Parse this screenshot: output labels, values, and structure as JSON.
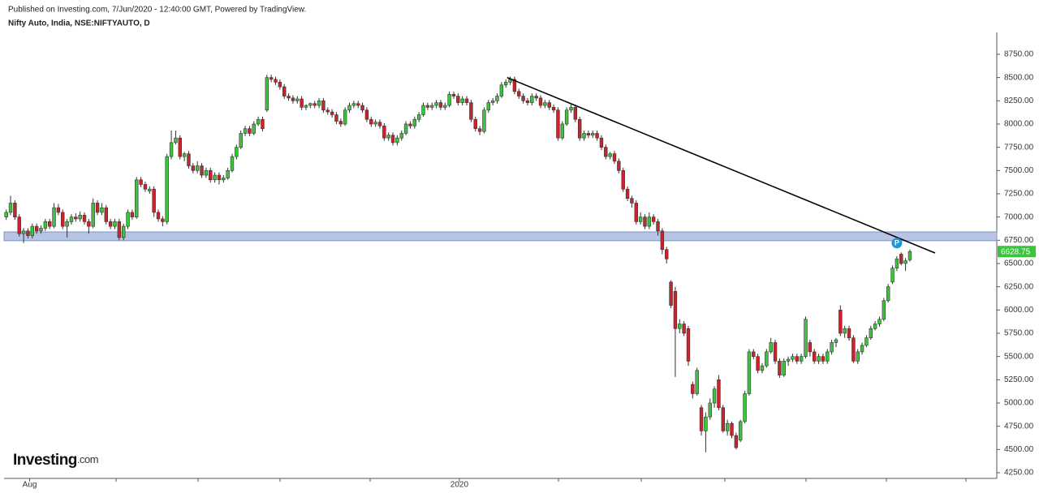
{
  "chart_data": {
    "type": "candlestick",
    "published": "Published on Investing.com, 7/Jun/2020 - 12:40:00 GMT, Powered by TradingView.",
    "title": "Nifty Auto, India, NSE:NIFTYAUTO, D",
    "logo": "Investing",
    "logo_suffix": ".com",
    "marker_label": "P",
    "up_color": "#3cc43c",
    "down_color": "#c9232b",
    "trendline_color": "#000000",
    "zone_color": "#9fb0d9",
    "xlim": [
      -0.5,
      228
    ],
    "xticks": [
      {
        "value": 5.4,
        "label": "Aug"
      },
      {
        "value": 104.3,
        "label": "2020"
      }
    ],
    "ylim": [
      4189,
      8985
    ],
    "yticks": [
      {
        "value": 4250,
        "label": "4250.00"
      },
      {
        "value": 4500,
        "label": "4500.00"
      },
      {
        "value": 4750,
        "label": "4750.00"
      },
      {
        "value": 5000,
        "label": "5000.00"
      },
      {
        "value": 5250,
        "label": "5250.00"
      },
      {
        "value": 5500,
        "label": "5500.00"
      },
      {
        "value": 5750,
        "label": "5750.00"
      },
      {
        "value": 6000,
        "label": "6000.00"
      },
      {
        "value": 6250,
        "label": "6250.00"
      },
      {
        "value": 6500,
        "label": "6500.00"
      },
      {
        "value": 6750,
        "label": "6750.00"
      },
      {
        "value": 7000,
        "label": "7000.00"
      },
      {
        "value": 7250,
        "label": "7250.00"
      },
      {
        "value": 7500,
        "label": "7500.00"
      },
      {
        "value": 7750,
        "label": "7750.00"
      },
      {
        "value": 8000,
        "label": "8000.00"
      },
      {
        "value": 8250,
        "label": "8250.00"
      },
      {
        "value": 8500,
        "label": "8500.00"
      },
      {
        "value": 8750,
        "label": "8750.00"
      }
    ],
    "zone": [
      6745,
      6840
    ],
    "trendline": {
      "x": [
        115.3,
        213.8
      ],
      "y": [
        8500,
        6613
      ]
    },
    "candles": [
      [
        7000,
        7080,
        6970,
        7050
      ],
      [
        7050,
        7230,
        7020,
        7150
      ],
      [
        7150,
        7180,
        6970,
        7000
      ],
      [
        7000,
        7030,
        6790,
        6820
      ],
      [
        6820,
        6880,
        6720,
        6850
      ],
      [
        6850,
        6880,
        6770,
        6800
      ],
      [
        6800,
        6930,
        6770,
        6900
      ],
      [
        6900,
        6930,
        6820,
        6850
      ],
      [
        6850,
        6910,
        6820,
        6880
      ],
      [
        6880,
        6980,
        6850,
        6950
      ],
      [
        6950,
        6980,
        6870,
        6900
      ],
      [
        6900,
        7150,
        6880,
        7100
      ],
      [
        7100,
        7140,
        7020,
        7050
      ],
      [
        7050,
        7080,
        6870,
        6900
      ],
      [
        6900,
        6980,
        6780,
        6950
      ],
      [
        6950,
        7030,
        6920,
        7000
      ],
      [
        7000,
        7040,
        6950,
        6980
      ],
      [
        6980,
        7060,
        6950,
        7020
      ],
      [
        7020,
        7050,
        6920,
        6950
      ],
      [
        6950,
        6980,
        6820,
        6900
      ],
      [
        6900,
        7200,
        6880,
        7150
      ],
      [
        7150,
        7180,
        7020,
        7050
      ],
      [
        7050,
        7150,
        7020,
        7100
      ],
      [
        7100,
        7130,
        6920,
        6950
      ],
      [
        6950,
        6980,
        6870,
        6900
      ],
      [
        6900,
        6980,
        6870,
        6950
      ],
      [
        6950,
        6980,
        6750,
        6780
      ],
      [
        6780,
        6930,
        6750,
        6900
      ],
      [
        6900,
        7080,
        6870,
        7050
      ],
      [
        7050,
        7080,
        6970,
        7000
      ],
      [
        7000,
        7430,
        6980,
        7400
      ],
      [
        7400,
        7430,
        7320,
        7350
      ],
      [
        7350,
        7380,
        7270,
        7300
      ],
      [
        7280,
        7330,
        7250,
        7300
      ],
      [
        7300,
        7330,
        7000,
        7050
      ],
      [
        7050,
        7080,
        6950,
        6980
      ],
      [
        6980,
        7010,
        6900,
        6950
      ],
      [
        6950,
        7680,
        6920,
        7650
      ],
      [
        7650,
        7930,
        7620,
        7800
      ],
      [
        7800,
        7930,
        7780,
        7850
      ],
      [
        7850,
        7880,
        7620,
        7650
      ],
      [
        7650,
        7700,
        7600,
        7680
      ],
      [
        7680,
        7710,
        7520,
        7550
      ],
      [
        7550,
        7580,
        7470,
        7500
      ],
      [
        7500,
        7600,
        7470,
        7550
      ],
      [
        7550,
        7580,
        7420,
        7450
      ],
      [
        7450,
        7530,
        7420,
        7500
      ],
      [
        7500,
        7530,
        7370,
        7400
      ],
      [
        7400,
        7480,
        7370,
        7450
      ],
      [
        7450,
        7480,
        7350,
        7400
      ],
      [
        7400,
        7450,
        7370,
        7420
      ],
      [
        7420,
        7530,
        7400,
        7500
      ],
      [
        7500,
        7680,
        7480,
        7650
      ],
      [
        7650,
        7780,
        7620,
        7750
      ],
      [
        7750,
        7930,
        7730,
        7900
      ],
      [
        7900,
        7980,
        7870,
        7950
      ],
      [
        7950,
        7980,
        7870,
        7900
      ],
      [
        7900,
        8030,
        7880,
        8000
      ],
      [
        8000,
        8080,
        7980,
        8050
      ],
      [
        8050,
        8080,
        7920,
        7950
      ],
      [
        8150,
        8530,
        8130,
        8500
      ],
      [
        8500,
        8530,
        8450,
        8480
      ],
      [
        8480,
        8510,
        8420,
        8450
      ],
      [
        8450,
        8480,
        8370,
        8400
      ],
      [
        8400,
        8430,
        8270,
        8300
      ],
      [
        8300,
        8330,
        8250,
        8280
      ],
      [
        8280,
        8310,
        8220,
        8250
      ],
      [
        8250,
        8300,
        8220,
        8270
      ],
      [
        8270,
        8300,
        8150,
        8180
      ],
      [
        8180,
        8210,
        8150,
        8200
      ],
      [
        8200,
        8230,
        8170,
        8220
      ],
      [
        8220,
        8250,
        8170,
        8200
      ],
      [
        8200,
        8280,
        8170,
        8250
      ],
      [
        8250,
        8280,
        8120,
        8150
      ],
      [
        8150,
        8180,
        8100,
        8130
      ],
      [
        8130,
        8160,
        8070,
        8100
      ],
      [
        8100,
        8130,
        8000,
        8030
      ],
      [
        8030,
        8060,
        7970,
        8000
      ],
      [
        8000,
        8180,
        7980,
        8150
      ],
      [
        8150,
        8230,
        8120,
        8200
      ],
      [
        8200,
        8250,
        8170,
        8220
      ],
      [
        8220,
        8250,
        8170,
        8200
      ],
      [
        8200,
        8230,
        8120,
        8150
      ],
      [
        8150,
        8180,
        8020,
        8050
      ],
      [
        8050,
        8080,
        7970,
        8000
      ],
      [
        8000,
        8050,
        7970,
        8020
      ],
      [
        8020,
        8050,
        7950,
        7980
      ],
      [
        7980,
        8010,
        7820,
        7850
      ],
      [
        7850,
        7910,
        7820,
        7880
      ],
      [
        7880,
        7910,
        7770,
        7800
      ],
      [
        7800,
        7880,
        7770,
        7850
      ],
      [
        7850,
        7930,
        7820,
        7900
      ],
      [
        7900,
        8030,
        7880,
        8000
      ],
      [
        8000,
        8030,
        7950,
        7980
      ],
      [
        7980,
        8080,
        7950,
        8050
      ],
      [
        8050,
        8130,
        8020,
        8100
      ],
      [
        8100,
        8230,
        8080,
        8200
      ],
      [
        8200,
        8230,
        8150,
        8180
      ],
      [
        8180,
        8230,
        8150,
        8200
      ],
      [
        8200,
        8260,
        8170,
        8230
      ],
      [
        8230,
        8260,
        8150,
        8180
      ],
      [
        8180,
        8230,
        8150,
        8200
      ],
      [
        8200,
        8350,
        8180,
        8320
      ],
      [
        8320,
        8350,
        8270,
        8300
      ],
      [
        8300,
        8330,
        8200,
        8230
      ],
      [
        8230,
        8300,
        8200,
        8270
      ],
      [
        8270,
        8300,
        8200,
        8230
      ],
      [
        8230,
        8260,
        8020,
        8050
      ],
      [
        8050,
        8080,
        7920,
        7950
      ],
      [
        7950,
        7980,
        7880,
        7920
      ],
      [
        7920,
        8180,
        7900,
        8150
      ],
      [
        8150,
        8260,
        8120,
        8230
      ],
      [
        8230,
        8280,
        8200,
        8250
      ],
      [
        8250,
        8330,
        8220,
        8300
      ],
      [
        8300,
        8450,
        8280,
        8420
      ],
      [
        8420,
        8480,
        8390,
        8450
      ],
      [
        8450,
        8510,
        8420,
        8480
      ],
      [
        8480,
        8510,
        8320,
        8350
      ],
      [
        8350,
        8380,
        8270,
        8300
      ],
      [
        8300,
        8330,
        8220,
        8250
      ],
      [
        8250,
        8280,
        8200,
        8230
      ],
      [
        8230,
        8330,
        8200,
        8300
      ],
      [
        8300,
        8330,
        8250,
        8280
      ],
      [
        8280,
        8310,
        8170,
        8200
      ],
      [
        8200,
        8260,
        8170,
        8230
      ],
      [
        8230,
        8260,
        8150,
        8180
      ],
      [
        8180,
        8210,
        8120,
        8150
      ],
      [
        8150,
        8180,
        7820,
        7850
      ],
      [
        7850,
        8030,
        7830,
        8000
      ],
      [
        8000,
        8180,
        7980,
        8150
      ],
      [
        8150,
        8210,
        8120,
        8180
      ],
      [
        8180,
        8210,
        8020,
        8050
      ],
      [
        8050,
        8080,
        7820,
        7850
      ],
      [
        7850,
        7930,
        7820,
        7900
      ],
      [
        7900,
        7930,
        7850,
        7880
      ],
      [
        7880,
        7930,
        7850,
        7900
      ],
      [
        7900,
        7930,
        7820,
        7850
      ],
      [
        7850,
        7880,
        7720,
        7750
      ],
      [
        7750,
        7780,
        7620,
        7650
      ],
      [
        7650,
        7700,
        7620,
        7680
      ],
      [
        7680,
        7710,
        7570,
        7600
      ],
      [
        7600,
        7630,
        7470,
        7500
      ],
      [
        7500,
        7530,
        7270,
        7300
      ],
      [
        7300,
        7330,
        7170,
        7200
      ],
      [
        7200,
        7230,
        7100,
        7150
      ],
      [
        7150,
        7180,
        6920,
        6950
      ],
      [
        6950,
        7050,
        6920,
        7000
      ],
      [
        7000,
        7030,
        6870,
        6900
      ],
      [
        6900,
        7050,
        6870,
        7000
      ],
      [
        7000,
        7030,
        6920,
        6950
      ],
      [
        6950,
        6980,
        6800,
        6850
      ],
      [
        6850,
        6880,
        6600,
        6650
      ],
      [
        6650,
        6680,
        6500,
        6550
      ],
      [
        6300,
        6320,
        6020,
        6050
      ],
      [
        6200,
        6250,
        5280,
        5800
      ],
      [
        5800,
        5900,
        5750,
        5850
      ],
      [
        5850,
        5880,
        5720,
        5750
      ],
      [
        5800,
        5830,
        5400,
        5450
      ],
      [
        5200,
        5230,
        5050,
        5100
      ],
      [
        5100,
        5380,
        5080,
        5350
      ],
      [
        4950,
        4980,
        4650,
        4700
      ],
      [
        4700,
        4900,
        4470,
        4850
      ],
      [
        4850,
        5050,
        4820,
        5000
      ],
      [
        5000,
        5180,
        4950,
        5150
      ],
      [
        5250,
        5300,
        4920,
        4950
      ],
      [
        4950,
        4980,
        4680,
        4700
      ],
      [
        4700,
        4820,
        4650,
        4780
      ],
      [
        4780,
        4800,
        4620,
        4650
      ],
      [
        4650,
        4680,
        4500,
        4520
      ],
      [
        4600,
        4820,
        4580,
        4800
      ],
      [
        4800,
        5130,
        4780,
        5100
      ],
      [
        5100,
        5580,
        5080,
        5550
      ],
      [
        5550,
        5580,
        5470,
        5500
      ],
      [
        5500,
        5530,
        5320,
        5350
      ],
      [
        5350,
        5430,
        5320,
        5400
      ],
      [
        5400,
        5580,
        5380,
        5550
      ],
      [
        5550,
        5700,
        5530,
        5650
      ],
      [
        5650,
        5680,
        5420,
        5450
      ],
      [
        5450,
        5480,
        5270,
        5300
      ],
      [
        5300,
        5480,
        5280,
        5450
      ],
      [
        5450,
        5500,
        5400,
        5470
      ],
      [
        5470,
        5530,
        5440,
        5500
      ],
      [
        5500,
        5530,
        5420,
        5450
      ],
      [
        5450,
        5530,
        5420,
        5500
      ],
      [
        5500,
        5930,
        5480,
        5900
      ],
      [
        5650,
        5680,
        5500,
        5550
      ],
      [
        5550,
        5580,
        5420,
        5450
      ],
      [
        5450,
        5530,
        5420,
        5500
      ],
      [
        5500,
        5530,
        5420,
        5450
      ],
      [
        5450,
        5580,
        5420,
        5550
      ],
      [
        5550,
        5680,
        5520,
        5650
      ],
      [
        5650,
        5700,
        5600,
        5680
      ],
      [
        6000,
        6050,
        5720,
        5750
      ],
      [
        5750,
        5830,
        5700,
        5800
      ],
      [
        5800,
        5830,
        5670,
        5700
      ],
      [
        5700,
        5730,
        5430,
        5450
      ],
      [
        5450,
        5580,
        5420,
        5550
      ],
      [
        5550,
        5650,
        5520,
        5620
      ],
      [
        5620,
        5730,
        5600,
        5700
      ],
      [
        5700,
        5830,
        5680,
        5800
      ],
      [
        5800,
        5880,
        5780,
        5850
      ],
      [
        5850,
        5930,
        5820,
        5900
      ],
      [
        5900,
        6130,
        5880,
        6100
      ],
      [
        6100,
        6280,
        6080,
        6250
      ],
      [
        6300,
        6480,
        6280,
        6450
      ],
      [
        6450,
        6580,
        6420,
        6550
      ],
      [
        6600,
        6620,
        6480,
        6500
      ],
      [
        6500,
        6560,
        6420,
        6530
      ],
      [
        6540,
        6650,
        6520,
        6628.75
      ]
    ]
  }
}
